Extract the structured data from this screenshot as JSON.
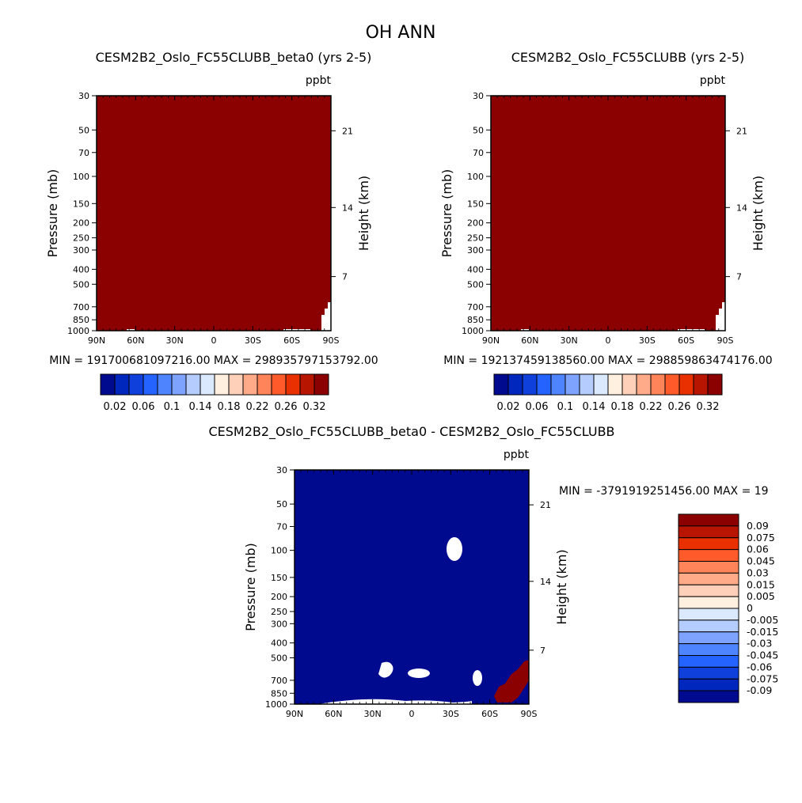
{
  "figure": {
    "title": "OH ANN"
  },
  "chart_data": [
    {
      "type": "heatmap",
      "title": "CESM2B2_Oslo_FC55CLUBB_beta0 (yrs 2-5)",
      "units": "ppbt",
      "ylabel": "Pressure (mb)",
      "ylabel_right": "Height (km)",
      "x_ticks": [
        "90N",
        "60N",
        "30N",
        "0",
        "30S",
        "60S",
        "90S"
      ],
      "y_ticks": [
        "30",
        "50",
        "70",
        "100",
        "150",
        "200",
        "250",
        "300",
        "400",
        "500",
        "700",
        "850",
        "1000"
      ],
      "y_ticks_right": [
        "21",
        "14",
        "7"
      ],
      "min_label": "MIN = 191700681097216.00",
      "max_label": "MAX = 298935797153792.00",
      "fill_color": "#8b0000",
      "colorbar": {
        "orientation": "horizontal",
        "colors": [
          "#000a8f",
          "#0027bd",
          "#0f40dc",
          "#2463ff",
          "#4f84ff",
          "#7ea3ff",
          "#b4ccff",
          "#dbe9ff",
          "#fff0df",
          "#ffd0b9",
          "#ffaa88",
          "#ff8459",
          "#ff5a2a",
          "#e83000",
          "#b81500",
          "#8b0000"
        ],
        "labels": [
          "0.02",
          "0.06",
          "0.1",
          "0.14",
          "0.18",
          "0.22",
          "0.26",
          "0.32"
        ]
      }
    },
    {
      "type": "heatmap",
      "title": "CESM2B2_Oslo_FC55CLUBB (yrs 2-5)",
      "units": "ppbt",
      "ylabel": "Pressure (mb)",
      "ylabel_right": "Height (km)",
      "x_ticks": [
        "90N",
        "60N",
        "30N",
        "0",
        "30S",
        "60S",
        "90S"
      ],
      "y_ticks": [
        "30",
        "50",
        "70",
        "100",
        "150",
        "200",
        "250",
        "300",
        "400",
        "500",
        "700",
        "850",
        "1000"
      ],
      "y_ticks_right": [
        "21",
        "14",
        "7"
      ],
      "min_label": "MIN = 192137459138560.00",
      "max_label": "MAX = 298859863474176.00",
      "fill_color": "#8b0000",
      "colorbar": {
        "orientation": "horizontal",
        "colors": [
          "#000a8f",
          "#0027bd",
          "#0f40dc",
          "#2463ff",
          "#4f84ff",
          "#7ea3ff",
          "#b4ccff",
          "#dbe9ff",
          "#fff0df",
          "#ffd0b9",
          "#ffaa88",
          "#ff8459",
          "#ff5a2a",
          "#e83000",
          "#b81500",
          "#8b0000"
        ],
        "labels": [
          "0.02",
          "0.06",
          "0.1",
          "0.14",
          "0.18",
          "0.22",
          "0.26",
          "0.32"
        ]
      }
    },
    {
      "type": "heatmap",
      "title": "CESM2B2_Oslo_FC55CLUBB_beta0 - CESM2B2_Oslo_FC55CLUBB",
      "units": "ppbt",
      "ylabel": "Pressure (mb)",
      "ylabel_right": "Height (km)",
      "x_ticks": [
        "90N",
        "60N",
        "30N",
        "0",
        "30S",
        "60S",
        "90S"
      ],
      "y_ticks": [
        "30",
        "50",
        "70",
        "100",
        "150",
        "200",
        "250",
        "300",
        "400",
        "500",
        "700",
        "850",
        "1000"
      ],
      "y_ticks_right": [
        "21",
        "14",
        "7"
      ],
      "min_max_label": "MIN = -3791919251456.00   MAX = 19",
      "fill_color": "#000a8f",
      "colorbar": {
        "orientation": "vertical",
        "colors": [
          "#8b0000",
          "#b81500",
          "#e83000",
          "#ff5a2a",
          "#ff8459",
          "#ffaa88",
          "#ffd0b9",
          "#fff0df",
          "#dbe9ff",
          "#b4ccff",
          "#7ea3ff",
          "#4f84ff",
          "#2463ff",
          "#0f40dc",
          "#0027bd",
          "#000a8f"
        ],
        "labels": [
          "0.09",
          "0.075",
          "0.06",
          "0.045",
          "0.03",
          "0.015",
          "0.005",
          "0",
          "-0.005",
          "-0.015",
          "-0.03",
          "-0.045",
          "-0.06",
          "-0.075",
          "-0.09"
        ]
      }
    }
  ]
}
